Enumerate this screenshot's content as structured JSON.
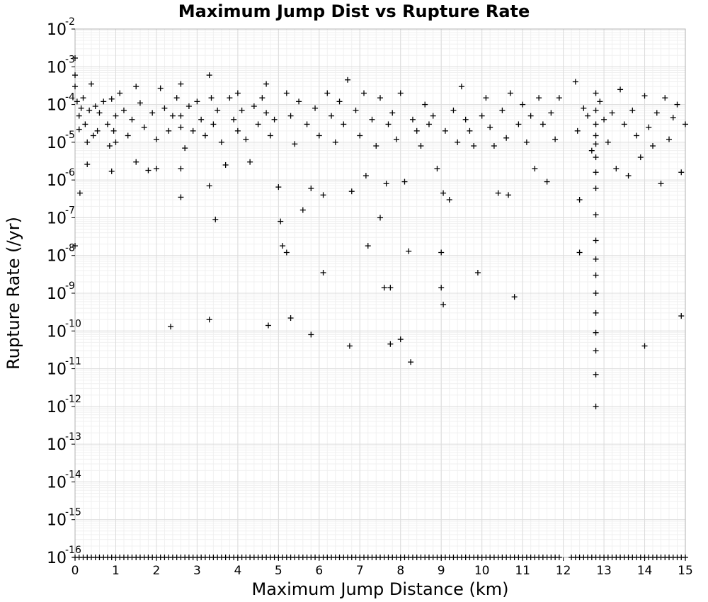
{
  "chart_data": {
    "type": "scatter",
    "title": "Maximum Jump Dist vs Rupture Rate",
    "xlabel": "Maximum Jump Distance (km)",
    "ylabel": "Rupture Rate (/yr)",
    "xlim": [
      0,
      15
    ],
    "ylim": [
      1e-16,
      0.01
    ],
    "yscale": "log",
    "grid": true,
    "legend": "none",
    "marker": "plus",
    "marker_color": "#000000",
    "x_ticks": [
      "0",
      "1",
      "2",
      "3",
      "4",
      "5",
      "6",
      "7",
      "8",
      "9",
      "10",
      "11",
      "12",
      "13",
      "14",
      "15"
    ],
    "y_ticks": [
      {
        "base": "10",
        "exp": "-2"
      },
      {
        "base": "10",
        "exp": "-3"
      },
      {
        "base": "10",
        "exp": "-4"
      },
      {
        "base": "10",
        "exp": "-5"
      },
      {
        "base": "10",
        "exp": "-6"
      },
      {
        "base": "10",
        "exp": "-7"
      },
      {
        "base": "10",
        "exp": "-8"
      },
      {
        "base": "10",
        "exp": "-9"
      },
      {
        "base": "10",
        "exp": "-10"
      },
      {
        "base": "10",
        "exp": "-11"
      },
      {
        "base": "10",
        "exp": "-12"
      },
      {
        "base": "10",
        "exp": "-13"
      },
      {
        "base": "10",
        "exp": "-14"
      },
      {
        "base": "10",
        "exp": "-15"
      },
      {
        "base": "10",
        "exp": "-16"
      }
    ],
    "points": [
      [
        0.0,
        0.0017
      ],
      [
        0.0,
        0.0006
      ],
      [
        0.0,
        0.0003
      ],
      [
        0.0,
        1.8e-08
      ],
      [
        0.05,
        0.00012
      ],
      [
        0.1,
        5e-05
      ],
      [
        0.1,
        2.2e-05
      ],
      [
        0.12,
        4.5e-07
      ],
      [
        0.15,
        8e-05
      ],
      [
        0.2,
        0.00015
      ],
      [
        0.25,
        3e-05
      ],
      [
        0.3,
        1e-05
      ],
      [
        0.3,
        2.6e-06
      ],
      [
        0.35,
        7e-05
      ],
      [
        0.4,
        0.00035
      ],
      [
        0.45,
        1.5e-05
      ],
      [
        0.5,
        9e-05
      ],
      [
        0.55,
        2e-05
      ],
      [
        0.6,
        6e-05
      ],
      [
        0.7,
        0.00012
      ],
      [
        0.8,
        3e-05
      ],
      [
        0.85,
        8e-06
      ],
      [
        0.9,
        1.7e-06
      ],
      [
        0.9,
        0.00014
      ],
      [
        0.95,
        2e-05
      ],
      [
        1.0,
        5e-05
      ],
      [
        1.0,
        1e-05
      ],
      [
        1.1,
        0.0002
      ],
      [
        1.2,
        7e-05
      ],
      [
        1.3,
        1.5e-05
      ],
      [
        1.4,
        4e-05
      ],
      [
        1.5,
        0.0003
      ],
      [
        1.5,
        3e-06
      ],
      [
        1.6,
        0.00011
      ],
      [
        1.7,
        2.5e-05
      ],
      [
        1.8,
        1.8e-06
      ],
      [
        1.9,
        6e-05
      ],
      [
        2.0,
        1.2e-05
      ],
      [
        2.0,
        2e-06
      ],
      [
        2.1,
        0.00027
      ],
      [
        2.2,
        8e-05
      ],
      [
        2.3,
        2e-05
      ],
      [
        2.35,
        1.3e-10
      ],
      [
        2.4,
        5e-05
      ],
      [
        2.5,
        0.00015
      ],
      [
        2.6,
        0.00035
      ],
      [
        2.6,
        5e-05
      ],
      [
        2.6,
        2e-06
      ],
      [
        2.6,
        3.5e-07
      ],
      [
        2.6,
        2.5e-05
      ],
      [
        2.7,
        7e-06
      ],
      [
        2.8,
        9e-05
      ],
      [
        2.9,
        2e-05
      ],
      [
        3.0,
        0.00012
      ],
      [
        3.1,
        4e-05
      ],
      [
        3.2,
        1.5e-05
      ],
      [
        3.3,
        0.0006
      ],
      [
        3.3,
        7e-07
      ],
      [
        3.3,
        2e-10
      ],
      [
        3.35,
        0.00015
      ],
      [
        3.4,
        3e-05
      ],
      [
        3.45,
        9e-08
      ],
      [
        3.5,
        7e-05
      ],
      [
        3.6,
        1e-05
      ],
      [
        3.7,
        2.5e-06
      ],
      [
        3.8,
        0.00015
      ],
      [
        3.9,
        4e-05
      ],
      [
        4.0,
        0.0002
      ],
      [
        4.0,
        2e-05
      ],
      [
        4.1,
        7e-05
      ],
      [
        4.2,
        1.2e-05
      ],
      [
        4.3,
        3e-06
      ],
      [
        4.4,
        9e-05
      ],
      [
        4.5,
        3e-05
      ],
      [
        4.6,
        0.00015
      ],
      [
        4.7,
        0.00035
      ],
      [
        4.7,
        6e-05
      ],
      [
        4.75,
        1.4e-10
      ],
      [
        4.8,
        1.5e-05
      ],
      [
        4.9,
        4e-05
      ],
      [
        5.0,
        6.5e-07
      ],
      [
        5.05,
        8e-08
      ],
      [
        5.1,
        1.8e-08
      ],
      [
        5.2,
        1.2e-08
      ],
      [
        5.2,
        0.0002
      ],
      [
        5.3,
        2.2e-10
      ],
      [
        5.3,
        5e-05
      ],
      [
        5.4,
        9e-06
      ],
      [
        5.5,
        0.00012
      ],
      [
        5.6,
        1.6e-07
      ],
      [
        5.7,
        3e-05
      ],
      [
        5.8,
        6e-07
      ],
      [
        5.8,
        8e-11
      ],
      [
        5.9,
        8e-05
      ],
      [
        6.0,
        1.5e-05
      ],
      [
        6.1,
        3.5e-09
      ],
      [
        6.1,
        4e-07
      ],
      [
        6.2,
        0.0002
      ],
      [
        6.3,
        5e-05
      ],
      [
        6.4,
        1e-05
      ],
      [
        6.5,
        0.00012
      ],
      [
        6.6,
        3e-05
      ],
      [
        6.7,
        0.00045
      ],
      [
        6.75,
        4e-11
      ],
      [
        6.8,
        5e-07
      ],
      [
        6.9,
        7e-05
      ],
      [
        7.0,
        1.5e-05
      ],
      [
        7.1,
        0.0002
      ],
      [
        7.15,
        1.3e-06
      ],
      [
        7.2,
        1.8e-08
      ],
      [
        7.3,
        4e-05
      ],
      [
        7.4,
        8e-06
      ],
      [
        7.5,
        0.00015
      ],
      [
        7.5,
        1e-07
      ],
      [
        7.6,
        1.4e-09
      ],
      [
        7.65,
        8e-07
      ],
      [
        7.7,
        3e-05
      ],
      [
        7.75,
        1.4e-09
      ],
      [
        7.75,
        4.5e-11
      ],
      [
        7.8,
        6e-05
      ],
      [
        7.9,
        1.2e-05
      ],
      [
        8.0,
        6e-11
      ],
      [
        8.0,
        0.0002
      ],
      [
        8.1,
        9e-07
      ],
      [
        8.2,
        1.3e-08
      ],
      [
        8.25,
        1.5e-11
      ],
      [
        8.3,
        4e-05
      ],
      [
        8.4,
        2e-05
      ],
      [
        8.5,
        8e-06
      ],
      [
        8.6,
        0.0001
      ],
      [
        8.7,
        3e-05
      ],
      [
        8.8,
        5e-05
      ],
      [
        8.9,
        2e-06
      ],
      [
        9.0,
        1.2e-08
      ],
      [
        9.0,
        1.4e-09
      ],
      [
        9.05,
        5e-10
      ],
      [
        9.05,
        4.5e-07
      ],
      [
        9.1,
        2e-05
      ],
      [
        9.2,
        3e-07
      ],
      [
        9.3,
        7e-05
      ],
      [
        9.4,
        1e-05
      ],
      [
        9.5,
        0.0003
      ],
      [
        9.6,
        4e-05
      ],
      [
        9.7,
        2e-05
      ],
      [
        9.8,
        8e-06
      ],
      [
        9.9,
        3.5e-09
      ],
      [
        10.0,
        5e-05
      ],
      [
        10.1,
        0.00015
      ],
      [
        10.2,
        2.5e-05
      ],
      [
        10.3,
        8e-06
      ],
      [
        10.4,
        4.5e-07
      ],
      [
        10.5,
        7e-05
      ],
      [
        10.6,
        1.3e-05
      ],
      [
        10.65,
        4e-07
      ],
      [
        10.7,
        0.0002
      ],
      [
        10.8,
        8e-10
      ],
      [
        10.9,
        3e-05
      ],
      [
        11.0,
        0.0001
      ],
      [
        11.1,
        1e-05
      ],
      [
        11.2,
        5e-05
      ],
      [
        11.3,
        2e-06
      ],
      [
        11.4,
        0.00015
      ],
      [
        11.5,
        3e-05
      ],
      [
        11.6,
        9e-07
      ],
      [
        11.7,
        6e-05
      ],
      [
        11.8,
        1.2e-05
      ],
      [
        11.9,
        0.00015
      ],
      [
        12.3,
        0.0004
      ],
      [
        12.35,
        2e-05
      ],
      [
        12.4,
        1.2e-08
      ],
      [
        12.4,
        3e-07
      ],
      [
        12.5,
        8e-05
      ],
      [
        12.6,
        5e-05
      ],
      [
        12.7,
        6e-06
      ],
      [
        12.8,
        0.0002
      ],
      [
        12.8,
        7e-05
      ],
      [
        12.8,
        3e-05
      ],
      [
        12.8,
        1.5e-05
      ],
      [
        12.8,
        9e-06
      ],
      [
        12.8,
        4e-06
      ],
      [
        12.8,
        1.6e-06
      ],
      [
        12.8,
        6e-07
      ],
      [
        12.8,
        1.2e-07
      ],
      [
        12.8,
        2.5e-08
      ],
      [
        12.8,
        8e-09
      ],
      [
        12.8,
        3e-09
      ],
      [
        12.8,
        1e-09
      ],
      [
        12.8,
        3e-10
      ],
      [
        12.8,
        9e-11
      ],
      [
        12.8,
        3e-11
      ],
      [
        12.8,
        7e-12
      ],
      [
        12.8,
        1e-12
      ],
      [
        12.9,
        0.00012
      ],
      [
        13.0,
        4e-05
      ],
      [
        13.1,
        1e-05
      ],
      [
        13.2,
        6e-05
      ],
      [
        13.3,
        2e-06
      ],
      [
        13.4,
        0.00025
      ],
      [
        13.5,
        3e-05
      ],
      [
        13.6,
        1.3e-06
      ],
      [
        13.7,
        7e-05
      ],
      [
        13.8,
        1.5e-05
      ],
      [
        13.9,
        4e-06
      ],
      [
        14.0,
        0.00017
      ],
      [
        14.0,
        4e-11
      ],
      [
        14.1,
        2.5e-05
      ],
      [
        14.2,
        8e-06
      ],
      [
        14.3,
        6e-05
      ],
      [
        14.4,
        8e-07
      ],
      [
        14.5,
        0.00015
      ],
      [
        14.6,
        1.2e-05
      ],
      [
        14.7,
        4.5e-05
      ],
      [
        14.8,
        0.0001
      ],
      [
        14.9,
        1.6e-06
      ],
      [
        14.9,
        2.5e-10
      ],
      [
        15.0,
        3e-05
      ]
    ],
    "floor_points_y": 1e-16,
    "floor_points_x": [
      0.0,
      0.1,
      0.2,
      0.3,
      0.4,
      0.5,
      0.6,
      0.7,
      0.8,
      0.9,
      1.0,
      1.1,
      1.2,
      1.3,
      1.4,
      1.5,
      1.6,
      1.7,
      1.8,
      1.9,
      2.0,
      2.1,
      2.2,
      2.3,
      2.4,
      2.5,
      2.6,
      2.7,
      2.8,
      2.9,
      3.0,
      3.1,
      3.2,
      3.3,
      3.4,
      3.5,
      3.6,
      3.7,
      3.8,
      3.9,
      4.0,
      4.1,
      4.2,
      4.3,
      4.4,
      4.5,
      4.6,
      4.7,
      4.8,
      4.9,
      5.0,
      5.1,
      5.2,
      5.3,
      5.4,
      5.5,
      5.6,
      5.7,
      5.8,
      5.9,
      6.0,
      6.1,
      6.2,
      6.3,
      6.4,
      6.5,
      6.6,
      6.7,
      6.8,
      6.9,
      7.0,
      7.1,
      7.2,
      7.3,
      7.4,
      7.5,
      7.6,
      7.7,
      7.8,
      7.9,
      8.0,
      8.1,
      8.2,
      8.3,
      8.4,
      8.5,
      8.6,
      8.7,
      8.8,
      8.9,
      9.0,
      9.1,
      9.2,
      9.3,
      9.4,
      9.5,
      9.6,
      9.7,
      9.8,
      9.9,
      10.0,
      10.1,
      10.2,
      10.3,
      10.4,
      10.5,
      10.6,
      10.7,
      10.8,
      10.9,
      11.0,
      11.1,
      11.2,
      11.3,
      11.4,
      11.5,
      11.6,
      11.7,
      11.8,
      11.9,
      12.2,
      12.3,
      12.4,
      12.5,
      12.6,
      12.7,
      12.8,
      12.9,
      13.0,
      13.1,
      13.2,
      13.3,
      13.4,
      13.5,
      13.6,
      13.7,
      13.8,
      13.9,
      14.0,
      14.1,
      14.2,
      14.3,
      14.4,
      14.5,
      14.6,
      14.7,
      14.8,
      14.9,
      15.0
    ]
  }
}
